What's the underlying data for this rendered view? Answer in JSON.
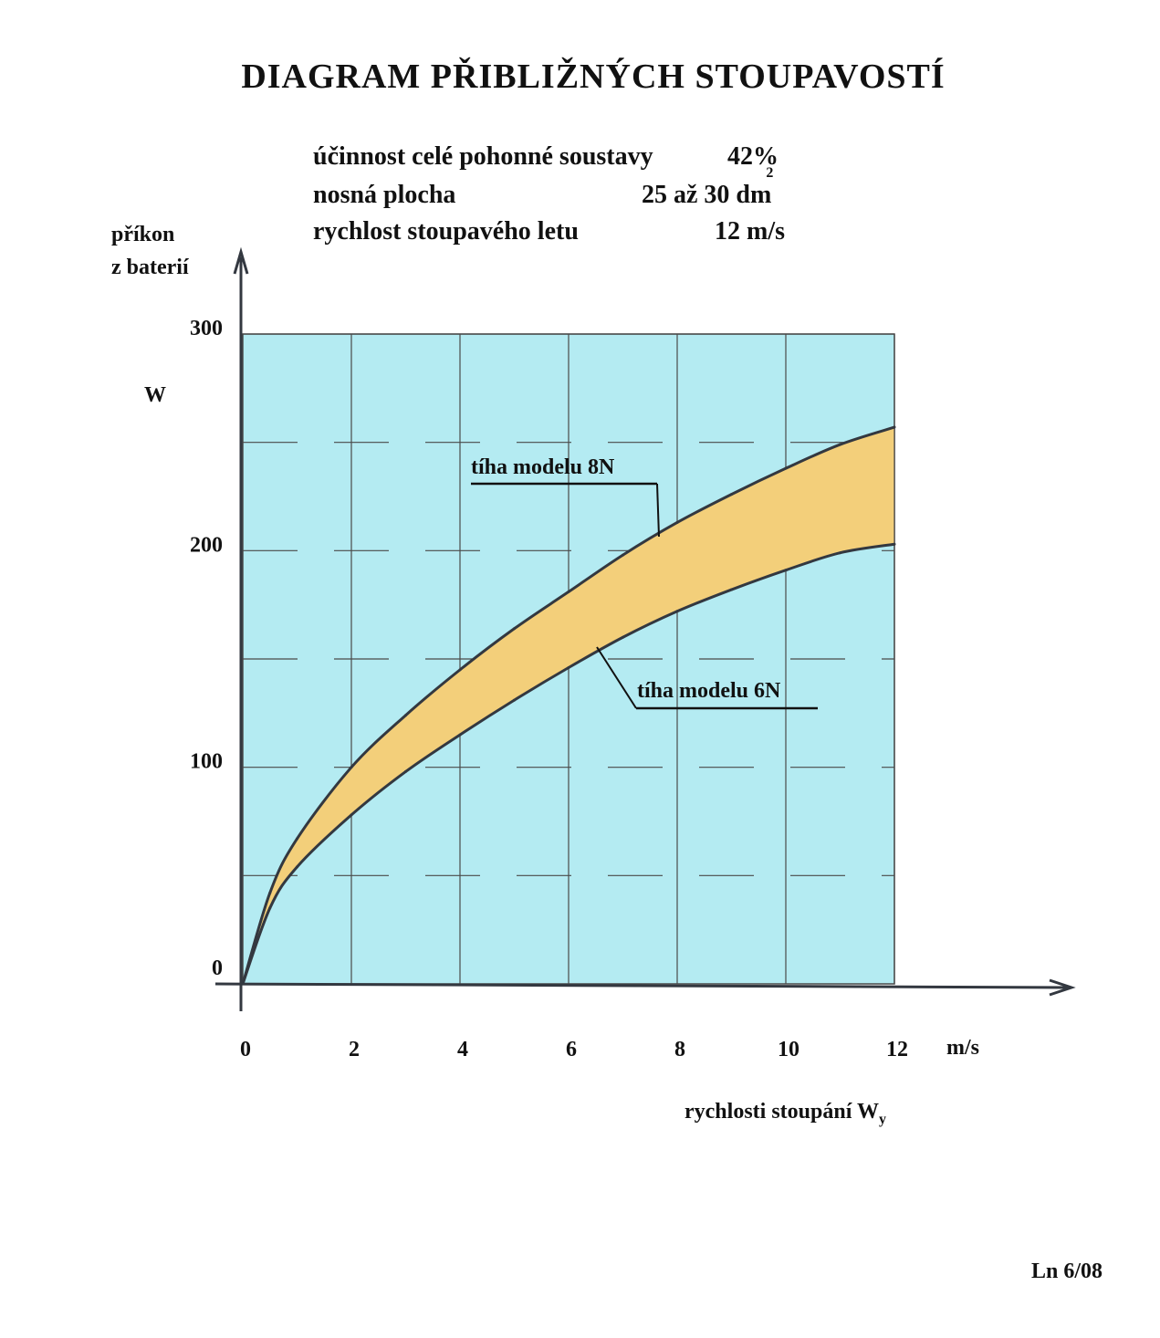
{
  "title": "DIAGRAM PŘIBLIŽNÝCH STOUPAVOSTÍ",
  "info": {
    "line1_label": "účinnost celé pohonné soustavy",
    "line1_value": "42%",
    "line2_label": "nosná plocha",
    "line2_value": "25 až 30 dm",
    "line2_sup": "2",
    "line3_label": "rychlost stoupavého letu",
    "line3_value": "12 m/s"
  },
  "colors": {
    "plot_bg": "#b4ebf2",
    "band_fill": "#f3cf7a",
    "curve": "#333840",
    "grid": "#4a4a4a"
  },
  "chart_data": {
    "type": "area",
    "title": "DIAGRAM PŘIBLIŽNÝCH STOUPAVOSTÍ",
    "ylabel_line1": "příkon",
    "ylabel_line2": "z baterií",
    "yunit": "W",
    "xlabel": "rychlosti stoupání",
    "xlabel_symbol": "W",
    "xlabel_sub": "y",
    "xunit": "m/s",
    "xlim": [
      0,
      12
    ],
    "ylim": [
      0,
      300
    ],
    "x_ticks": [
      0,
      2,
      4,
      6,
      8,
      10,
      12
    ],
    "y_ticks": [
      0,
      100,
      200,
      300
    ],
    "grid": true,
    "series": [
      {
        "name": "tíha modelu 8N",
        "x": [
          0,
          0.5,
          1,
          2,
          3,
          4,
          5,
          6,
          7,
          8,
          9,
          10,
          11,
          12
        ],
        "values": [
          0,
          42,
          67,
          100,
          124,
          145,
          164,
          181,
          198,
          213,
          226,
          238,
          249,
          257
        ]
      },
      {
        "name": "tíha modelu 6N",
        "x": [
          0,
          0.5,
          1,
          2,
          3,
          4,
          5,
          6,
          7,
          8,
          9,
          10,
          11,
          12
        ],
        "values": [
          0,
          35,
          54,
          78,
          98,
          115,
          131,
          146,
          160,
          172,
          182,
          191,
          199,
          203
        ]
      }
    ]
  },
  "footer": "Ln 6/08"
}
